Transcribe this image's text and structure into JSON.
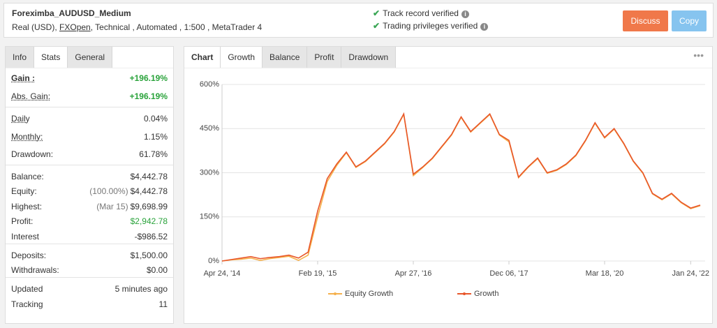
{
  "header": {
    "title": "Foreximba_AUDUSD_Medium",
    "account": "Real (USD),",
    "broker": "FXOpen",
    "details": ", Technical , Automated , 1:500 , MetaTrader 4",
    "verifications": [
      "Track record verified",
      "Trading privileges verified"
    ],
    "buttons": [
      "Discuss",
      "Copy"
    ]
  },
  "stats_panel": {
    "tabs": [
      "Info",
      "Stats",
      "General"
    ],
    "groups": [
      [
        {
          "label": "Gain :",
          "value": "+196.19%"
        },
        {
          "label": "Abs. Gain:",
          "value": "+196.19%"
        }
      ],
      [
        {
          "label": "Daily",
          "value": "0.04%"
        },
        {
          "label": "Monthly:",
          "value": "1.15%"
        },
        {
          "label": "Drawdown:",
          "value": "61.78%"
        }
      ],
      [
        {
          "label": "Balance:",
          "value": "$4,442.78"
        },
        {
          "label": "Equity:",
          "note": "(100.00%)",
          "value": "$4,442.78"
        },
        {
          "label": "Highest:",
          "note": "(Mar 15)",
          "value": "$9,698.99"
        },
        {
          "label": "Profit:",
          "value": "$2,942.78"
        },
        {
          "label": "Interest",
          "value": "-$986.52"
        }
      ],
      [
        {
          "label": "Deposits:",
          "value": "$1,500.00"
        },
        {
          "label": "Withdrawals:",
          "value": "$0.00"
        }
      ],
      [
        {
          "label": "Updated",
          "value": "5 minutes ago"
        },
        {
          "label": "Tracking",
          "value": "11"
        }
      ]
    ]
  },
  "chart_panel": {
    "tabs": [
      "Chart",
      "Growth",
      "Balance",
      "Profit",
      "Drawdown"
    ],
    "chart_data": {
      "type": "line",
      "categories": [
        "Apr 24, '14",
        null,
        null,
        null,
        null,
        null,
        null,
        null,
        null,
        null,
        "Feb 19, '15",
        null,
        null,
        null,
        null,
        null,
        null,
        null,
        null,
        null,
        "Apr 27, '16",
        null,
        null,
        null,
        null,
        null,
        null,
        null,
        null,
        null,
        "Dec 06, '17",
        null,
        null,
        null,
        null,
        null,
        null,
        null,
        null,
        null,
        "Mar 18, '20",
        null,
        null,
        null,
        null,
        null,
        null,
        null,
        null,
        "Jan 24, '22",
        null
      ],
      "series": [
        {
          "name": "Equity Growth",
          "color": "#f5b04b",
          "values": [
            0,
            4,
            6,
            10,
            2,
            8,
            12,
            16,
            2,
            20,
            150,
            270,
            325,
            368,
            318,
            338,
            368,
            398,
            438,
            498,
            290,
            318,
            348,
            388,
            428,
            488,
            438,
            468,
            498,
            428,
            405,
            283,
            318,
            348,
            298,
            308,
            328,
            358,
            408,
            468,
            418,
            448,
            398,
            338,
            298,
            228,
            208,
            228,
            198,
            178,
            188
          ]
        },
        {
          "name": "Growth",
          "color": "#e8562a",
          "values": [
            0,
            5,
            10,
            15,
            8,
            12,
            15,
            20,
            10,
            30,
            170,
            280,
            330,
            370,
            320,
            340,
            370,
            400,
            440,
            500,
            295,
            320,
            350,
            390,
            430,
            490,
            440,
            470,
            500,
            430,
            410,
            285,
            320,
            350,
            300,
            310,
            330,
            360,
            410,
            470,
            420,
            450,
            400,
            340,
            300,
            230,
            210,
            230,
            200,
            180,
            190
          ]
        }
      ],
      "ylim": [
        0,
        600
      ],
      "yticks": [
        {
          "value": 0,
          "label": "0%"
        },
        {
          "value": 150,
          "label": "150%"
        },
        {
          "value": 300,
          "label": "300%"
        },
        {
          "value": 450,
          "label": "450%"
        },
        {
          "value": 600,
          "label": "600%"
        }
      ],
      "grid": true
    }
  }
}
